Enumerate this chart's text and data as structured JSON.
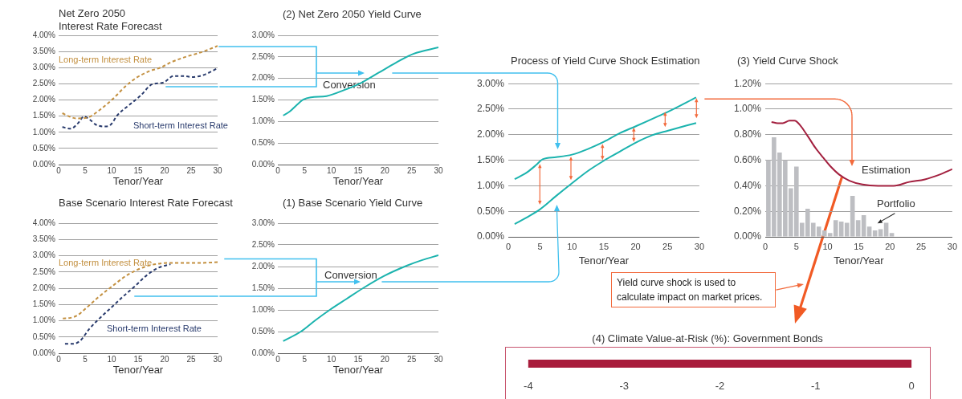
{
  "chart_data": [
    {
      "type": "line",
      "title": "Net Zero 2050\nInterest Rate Forecast",
      "xlabel": "Tenor/Year",
      "series": [
        {
          "name": "Long-term Interest Rate",
          "color": "#c39040",
          "x": [
            0.7,
            2,
            3.3,
            5,
            6,
            7.9,
            10.1,
            12.8,
            14.9,
            17.1,
            19.2,
            21.4,
            24.1,
            26.8,
            30
          ],
          "values": [
            1.59,
            1.49,
            1.43,
            1.44,
            1.49,
            1.71,
            2.01,
            2.45,
            2.71,
            2.89,
            3.0,
            3.18,
            3.34,
            3.47,
            3.67
          ]
        },
        {
          "name": "Short-term Interest Rate",
          "color": "#283a6c",
          "x": [
            0.7,
            2.3,
            3.6,
            4.8,
            5.8,
            7.1,
            8.7,
            9.8,
            11.1,
            13.3,
            15.5,
            17.6,
            19.8,
            21.7,
            23.5,
            25.2,
            27.3,
            30
          ],
          "values": [
            1.16,
            1.11,
            1.27,
            1.49,
            1.4,
            1.23,
            1.18,
            1.23,
            1.53,
            1.84,
            2.14,
            2.48,
            2.54,
            2.74,
            2.74,
            2.71,
            2.77,
            2.98
          ]
        }
      ],
      "xlim": [
        0,
        30
      ],
      "xticks": [
        0,
        5,
        10,
        15,
        20,
        25,
        30
      ],
      "ylim": [
        0,
        4
      ],
      "yticks": [
        {
          "value": 0,
          "label": "0.00%"
        },
        {
          "value": 0.5,
          "label": "0.50%"
        },
        {
          "value": 1,
          "label": "1.00%"
        },
        {
          "value": 1.5,
          "label": "1.50%"
        },
        {
          "value": 2,
          "label": "2.00%"
        },
        {
          "value": 2.5,
          "label": "2.50%"
        },
        {
          "value": 3,
          "label": "3.00%"
        },
        {
          "value": 3.5,
          "label": "3.50%"
        },
        {
          "value": 4,
          "label": "4.00%"
        }
      ],
      "grid": "y",
      "legend": false,
      "marker": "none",
      "line_style": "dashed"
    },
    {
      "type": "line",
      "title": "(2) Net Zero 2050 Yield Curve",
      "xlabel": "Tenor/Year",
      "annotations": [
        "Conversion"
      ],
      "series": [
        {
          "color": "#1bb3ae",
          "x": [
            1,
            2.2,
            3.5,
            4.8,
            6.2,
            9.1,
            12.4,
            15.6,
            18.8,
            22,
            25.3,
            30
          ],
          "values": [
            1.14,
            1.23,
            1.38,
            1.51,
            1.56,
            1.59,
            1.73,
            1.9,
            2.13,
            2.36,
            2.57,
            2.72
          ]
        }
      ],
      "xlim": [
        0,
        30
      ],
      "xticks": [
        0,
        5,
        10,
        15,
        20,
        25,
        30
      ],
      "ylim": [
        0,
        3
      ],
      "yticks": [
        {
          "value": 0,
          "label": "0.00%"
        },
        {
          "value": 0.5,
          "label": "0.50%"
        },
        {
          "value": 1,
          "label": "1.00%"
        },
        {
          "value": 1.5,
          "label": "1.50%"
        },
        {
          "value": 2,
          "label": "2.00%"
        },
        {
          "value": 2.5,
          "label": "2.50%"
        },
        {
          "value": 3,
          "label": "3.00%"
        }
      ],
      "grid": "y",
      "marker": "none",
      "line_style": "solid"
    },
    {
      "type": "line",
      "title": "Base Scenario Interest Rate Forecast",
      "xlabel": "Tenor/Year",
      "series": [
        {
          "name": "Long-term Interest Rate",
          "color": "#c39040",
          "x": [
            0.8,
            2.3,
            3.6,
            5.2,
            7.4,
            10.1,
            12.8,
            14.9,
            17.1,
            19.2,
            22.5,
            26.8,
            30
          ],
          "values": [
            1.07,
            1.09,
            1.17,
            1.39,
            1.71,
            2.06,
            2.39,
            2.57,
            2.7,
            2.76,
            2.78,
            2.78,
            2.8
          ]
        },
        {
          "name": "Short-term Interest Rate",
          "color": "#283a6c",
          "x": [
            1.2,
            2.8,
            4.1,
            5.8,
            7.9,
            10.1,
            12.2,
            14.4,
            16.5,
            18.7,
            21.1
          ],
          "values": [
            0.29,
            0.29,
            0.39,
            0.75,
            1.1,
            1.43,
            1.75,
            2.06,
            2.38,
            2.62,
            2.74
          ]
        }
      ],
      "xlim": [
        0,
        30
      ],
      "xticks": [
        0,
        5,
        10,
        15,
        20,
        25,
        30
      ],
      "ylim": [
        0,
        4
      ],
      "yticks": [
        {
          "value": 0,
          "label": "0.00%"
        },
        {
          "value": 0.5,
          "label": "0.50%"
        },
        {
          "value": 1,
          "label": "1.00%"
        },
        {
          "value": 1.5,
          "label": "1.50%"
        },
        {
          "value": 2,
          "label": "2.00%"
        },
        {
          "value": 2.5,
          "label": "2.50%"
        },
        {
          "value": 3,
          "label": "3.00%"
        },
        {
          "value": 3.5,
          "label": "3.50%"
        },
        {
          "value": 4,
          "label": "4.00%"
        }
      ],
      "grid": "y",
      "legend": false,
      "marker": "none",
      "line_style": "dashed"
    },
    {
      "type": "line",
      "title": "(1) Base Scenario Yield Curve",
      "xlabel": "Tenor/Year",
      "annotations": [
        "Conversion"
      ],
      "series": [
        {
          "color": "#1bb3ae",
          "x": [
            1,
            4.3,
            7,
            9.7,
            12.8,
            15.9,
            19.8,
            23.7,
            27,
            30
          ],
          "values": [
            0.28,
            0.5,
            0.76,
            1.0,
            1.25,
            1.5,
            1.78,
            2.0,
            2.15,
            2.26
          ]
        }
      ],
      "xlim": [
        0,
        30
      ],
      "xticks": [
        0,
        5,
        10,
        15,
        20,
        25,
        30
      ],
      "ylim": [
        0,
        3
      ],
      "yticks": [
        {
          "value": 0,
          "label": "0.00%"
        },
        {
          "value": 0.5,
          "label": "0.50%"
        },
        {
          "value": 1,
          "label": "1.00%"
        },
        {
          "value": 1.5,
          "label": "1.50%"
        },
        {
          "value": 2,
          "label": "2.00%"
        },
        {
          "value": 2.5,
          "label": "2.50%"
        },
        {
          "value": 3,
          "label": "3.00%"
        }
      ],
      "grid": "y",
      "marker": "none",
      "line_style": "solid"
    },
    {
      "type": "line",
      "title": "Process of Yield Curve Shock Estimation",
      "xlabel": "Tenor/Year",
      "series": [
        {
          "color": "#1bb3ae",
          "x": [
            1,
            2.9,
            4.4,
            5.4,
            7.5,
            10,
            12.5,
            15,
            17.5,
            20.1,
            22.6,
            25.1,
            29.5
          ],
          "values": [
            1.13,
            1.26,
            1.41,
            1.52,
            1.56,
            1.61,
            1.72,
            1.86,
            2.03,
            2.17,
            2.31,
            2.45,
            2.73
          ]
        },
        {
          "color": "#1bb3ae",
          "x": [
            1,
            2.9,
            5,
            7.5,
            10,
            12.5,
            15,
            17.5,
            20.1,
            22.6,
            25.1,
            29.5
          ],
          "values": [
            0.25,
            0.38,
            0.54,
            0.8,
            1.05,
            1.29,
            1.49,
            1.67,
            1.85,
            1.99,
            2.08,
            2.23
          ]
        }
      ],
      "xlim": [
        0,
        30
      ],
      "xticks": [
        0,
        5,
        10,
        15,
        20,
        25,
        30
      ],
      "ylim": [
        0,
        3
      ],
      "yticks": [
        {
          "value": 0,
          "label": "0.00%"
        },
        {
          "value": 0.5,
          "label": "0.50%"
        },
        {
          "value": 1,
          "label": "1.00%"
        },
        {
          "value": 1.5,
          "label": "1.50%"
        },
        {
          "value": 2,
          "label": "2.00%"
        },
        {
          "value": 2.5,
          "label": "2.50%"
        },
        {
          "value": 3,
          "label": "3.00%"
        }
      ],
      "grid": "y",
      "marker": "none",
      "line_style": "solid"
    },
    {
      "type": "bar",
      "title": "(3) Yield Curve Shock",
      "xlabel": "Tenor/Year",
      "series": [
        {
          "type": "bar",
          "name": "Portfolio",
          "color": "#bdbec2",
          "x": [
            0.5,
            1.4,
            2.3,
            3.2,
            4.1,
            5,
            5.9,
            6.8,
            7.7,
            8.6,
            9.5,
            10.4,
            11.3,
            12.2,
            13.1,
            14,
            14.9,
            15.8,
            16.7,
            17.6,
            18.5,
            19.4,
            20.3
          ],
          "values": [
            0.6,
            0.78,
            0.66,
            0.6,
            0.38,
            0.55,
            0.11,
            0.22,
            0.11,
            0.08,
            0.05,
            0.03,
            0.13,
            0.12,
            0.11,
            0.32,
            0.13,
            0.17,
            0.08,
            0.05,
            0.06,
            0.11,
            0.03
          ]
        },
        {
          "type": "line",
          "name": "Estimation",
          "color": "#a3203f",
          "x": [
            1,
            2,
            2.8,
            3.9,
            4.7,
            5.5,
            6.8,
            8,
            9.3,
            10.5,
            11.8,
            13.5,
            15.6,
            18.1,
            20.6,
            23.1,
            25.6,
            28.1,
            30
          ],
          "values": [
            0.9,
            0.89,
            0.89,
            0.91,
            0.91,
            0.88,
            0.79,
            0.7,
            0.62,
            0.55,
            0.49,
            0.44,
            0.41,
            0.4,
            0.4,
            0.43,
            0.45,
            0.49,
            0.53
          ]
        }
      ],
      "xlim": [
        0,
        30
      ],
      "xticks": [
        0,
        5,
        10,
        15,
        20,
        25,
        30
      ],
      "ylim": [
        0,
        1.2
      ],
      "yticks": [
        {
          "value": 0,
          "label": "0.00%"
        },
        {
          "value": 0.2,
          "label": "0.20%"
        },
        {
          "value": 0.4,
          "label": "0.40%"
        },
        {
          "value": 0.6,
          "label": "0.60%"
        },
        {
          "value": 0.8,
          "label": "0.80%"
        },
        {
          "value": 1,
          "label": "1.00%"
        },
        {
          "value": 1.2,
          "label": "1.20%"
        }
      ],
      "grid": "y",
      "legend": false,
      "marker": "none",
      "line_style": "solid"
    },
    {
      "type": "bar",
      "title": "(4) Climate Value-at-Risk (%): Government Bonds",
      "orientation": "horizontal",
      "categories": [
        null
      ],
      "values": [
        -4
      ],
      "color": "#a81c3b",
      "xlim": [
        -4.25,
        0.2
      ],
      "xticks": [
        -4,
        -3,
        -2,
        -1,
        0
      ],
      "grid": false,
      "annotations": [
        "Yield curve shock is used to calculate impact on market prices."
      ]
    }
  ]
}
